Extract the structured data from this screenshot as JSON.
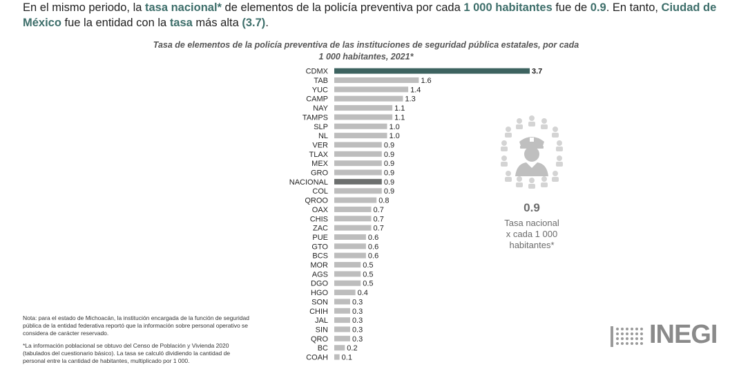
{
  "intro": {
    "t1": "En el mismo periodo, la ",
    "h1": "tasa nacional*",
    "t2": " de elementos de la policía preventiva por cada ",
    "h2": "1 000 habitantes",
    "t3": " fue de ",
    "h3": "0.9",
    "t4": ". En tanto, ",
    "h4": "Ciudad de México",
    "t5": " fue la entidad con la ",
    "h5": "tasa",
    "t6": " más alta ",
    "h6": "(3.7)",
    "t7": "."
  },
  "side_panel": {
    "value": "0.9",
    "caption_line1": "Tasa nacional",
    "caption_line2": "x cada 1 000",
    "caption_line3": "habitantes*",
    "icon": "police-group-icon"
  },
  "notes": {
    "note1": "Nota: para el estado de Michoacán, la institución encargada de la función de seguridad pública de la entidad federativa reportó que la información sobre personal operativo se considera de carácter reservado.",
    "note2": "*La información poblacional se obtuvo del Censo de Población y Vivienda 2020 (tabulados del cuestionario básico). La tasa se calculó dividiendo la cantidad de personal entre la cantidad de habitantes, multiplicado por 1 000."
  },
  "logo": {
    "text": "INEGI"
  },
  "colors": {
    "highlight_text": "#3d6e6a",
    "bar_default": "#bdbdbd",
    "bar_cdmx": "#3d6360",
    "bar_nacional": "#6c6f6e"
  },
  "chart_data": {
    "type": "bar",
    "orientation": "horizontal",
    "title_line1": "Tasa de elementos de la policía preventiva de las instituciones de seguridad pública estatales, por cada",
    "title_line2": "1 000 habitantes, 2021*",
    "categories": [
      "CDMX",
      "TAB",
      "YUC",
      "CAMP",
      "NAY",
      "TAMPS",
      "SLP",
      "NL",
      "VER",
      "TLAX",
      "MEX",
      "GRO",
      "NACIONAL",
      "COL",
      "QROO",
      "OAX",
      "CHIS",
      "ZAC",
      "PUE",
      "GTO",
      "BCS",
      "MOR",
      "AGS",
      "DGO",
      "HGO",
      "SON",
      "CHIH",
      "JAL",
      "SIN",
      "QRO",
      "BC",
      "COAH"
    ],
    "values": [
      3.7,
      1.6,
      1.4,
      1.3,
      1.1,
      1.1,
      1.0,
      1.0,
      0.9,
      0.9,
      0.9,
      0.9,
      0.9,
      0.9,
      0.8,
      0.7,
      0.7,
      0.7,
      0.6,
      0.6,
      0.6,
      0.5,
      0.5,
      0.5,
      0.4,
      0.3,
      0.3,
      0.3,
      0.3,
      0.3,
      0.2,
      0.1
    ],
    "value_labels": [
      "3.7",
      "1.6",
      "1.4",
      "1.3",
      "1.1",
      "1.1",
      "1.0",
      "1.0",
      "0.9",
      "0.9",
      "0.9",
      "0.9",
      "0.9",
      "0.9",
      "0.8",
      "0.7",
      "0.7",
      "0.7",
      "0.6",
      "0.6",
      "0.6",
      "0.5",
      "0.5",
      "0.5",
      "0.4",
      "0.3",
      "0.3",
      "0.3",
      "0.3",
      "0.3",
      "0.2",
      "0.1"
    ],
    "highlight": {
      "CDMX": "#3d6360",
      "NACIONAL": "#6c6f6e"
    },
    "default_color": "#bdbdbd",
    "xlim": [
      0,
      3.7
    ],
    "grid": false
  }
}
